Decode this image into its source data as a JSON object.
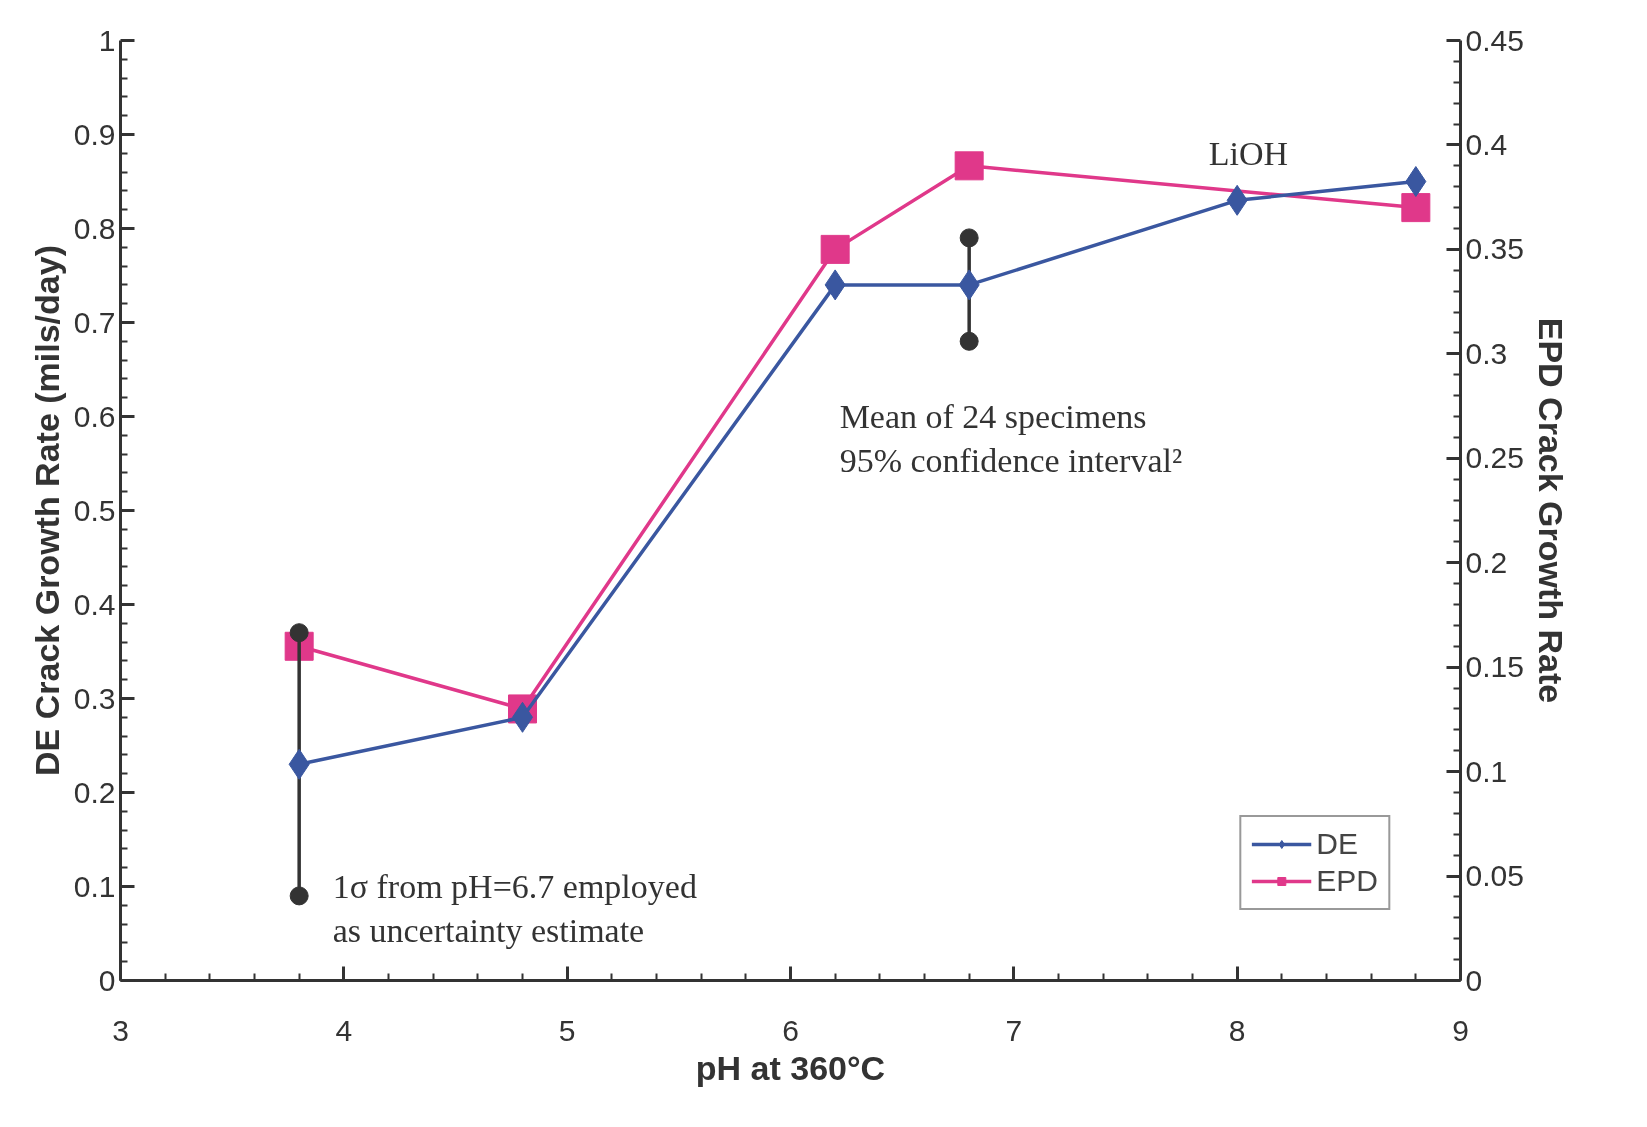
{
  "chart_data": {
    "type": "line",
    "xlabel": "pH at 360°C",
    "ylabel": "DE Crack Growth Rate (mils/day)",
    "y2label": "EPD Crack Growth Rate",
    "xlim": [
      3,
      9
    ],
    "xticks": [
      3,
      4,
      5,
      6,
      7,
      8,
      9
    ],
    "ylim": [
      0,
      1
    ],
    "yticks": [
      0,
      0.1,
      0.2,
      0.3,
      0.4,
      0.5,
      0.6,
      0.7,
      0.8,
      0.9,
      1
    ],
    "y2lim": [
      0,
      0.45
    ],
    "y2ticks": [
      0,
      0.05,
      0.1,
      0.15,
      0.2,
      0.25,
      0.3,
      0.35,
      0.4,
      0.45
    ],
    "grid": false,
    "legend": "bottom right",
    "line_style": "solid",
    "series": [
      {
        "name": "DE",
        "color": "#3a57a0",
        "marker": "diamond",
        "x": [
          3.8,
          4.8,
          6.2,
          6.8,
          8.0,
          8.8
        ],
        "values": [
          0.23,
          0.28,
          0.74,
          0.74,
          0.83,
          0.85
        ]
      },
      {
        "type": "line",
        "color": "#333333",
        "marker": "circle",
        "x": [
          3.8,
          3.8
        ],
        "values": [
          0.09,
          0.37
        ]
      },
      {
        "type": "line",
        "color": "#333333",
        "marker": "circle",
        "x": [
          6.8,
          6.8
        ],
        "values": [
          0.68,
          0.79
        ]
      },
      {
        "name": "EPD",
        "color": "#e0388a",
        "marker": "square",
        "axis": "y2",
        "x": [
          3.8,
          4.8,
          6.2,
          6.8,
          8.8
        ],
        "values": [
          0.16,
          0.13,
          0.35,
          0.39,
          0.37
        ]
      }
    ],
    "annotations": [
      "LiOH",
      "Mean of 24 specimens\n95% confidence interval²",
      "1σ from pH=6.7 employed\nas uncertainty estimate"
    ]
  }
}
